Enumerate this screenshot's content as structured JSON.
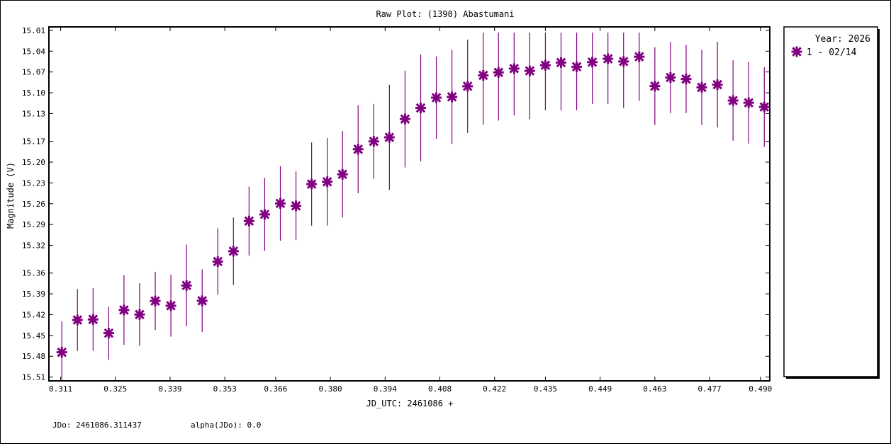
{
  "chart_data": {
    "type": "scatter",
    "title": "Raw Plot: (1390) Abastumani",
    "xlabel": "JD_UTC: 2461086 +",
    "ylabel": "Magnitude (V)",
    "x_ticks": [
      "0.311",
      "0.325",
      "0.339",
      "0.353",
      "0.366",
      "0.380",
      "0.394",
      "0.408",
      "0.422",
      "0.435",
      "0.449",
      "0.463",
      "0.477",
      "0.490"
    ],
    "y_ticks": [
      "15.01",
      "15.04",
      "15.07",
      "15.10",
      "15.13",
      "15.17",
      "15.20",
      "15.23",
      "15.26",
      "15.29",
      "15.32",
      "15.36",
      "15.39",
      "15.42",
      "15.45",
      "15.48",
      "15.51"
    ],
    "xlim": [
      0.308,
      0.4924
    ],
    "ylim": [
      15.005,
      15.5155
    ],
    "y_inverted": true,
    "legend": {
      "title": "Year: 2026",
      "entries": [
        "1 - 02/14"
      ],
      "placement": "right"
    },
    "series": [
      {
        "name": "1 - 02/14",
        "color": "#800080",
        "marker": "star",
        "x": [
          0.3113,
          0.3153,
          0.3193,
          0.3233,
          0.3272,
          0.3312,
          0.3352,
          0.3392,
          0.3432,
          0.3472,
          0.3512,
          0.3552,
          0.3592,
          0.3632,
          0.3672,
          0.3712,
          0.3752,
          0.3792,
          0.3831,
          0.3871,
          0.3911,
          0.3951,
          0.3991,
          0.4031,
          0.4071,
          0.4111,
          0.4151,
          0.4191,
          0.423,
          0.427,
          0.431,
          0.435,
          0.439,
          0.443,
          0.447,
          0.451,
          0.455,
          0.459,
          0.463,
          0.467,
          0.471,
          0.475,
          0.479,
          0.483,
          0.487,
          0.491
        ],
        "y": [
          15.4743,
          15.4277,
          15.4269,
          15.4467,
          15.4133,
          15.4198,
          15.4003,
          15.4071,
          15.3779,
          15.4,
          15.3434,
          15.3285,
          15.285,
          15.2754,
          15.2596,
          15.2631,
          15.2317,
          15.2284,
          15.2176,
          15.1814,
          15.1701,
          15.1643,
          15.1379,
          15.1219,
          15.1071,
          15.1059,
          15.0906,
          15.0749,
          15.0706,
          15.0651,
          15.0684,
          15.0603,
          15.0564,
          15.0625,
          15.0558,
          15.051,
          15.0549,
          15.048,
          15.0904,
          15.078,
          15.0802,
          15.0922,
          15.0883,
          15.1112,
          15.1144,
          15.1205
        ],
        "err": [
          0.0447,
          0.0447,
          0.0451,
          0.0382,
          0.0502,
          0.0451,
          0.042,
          0.0447,
          0.0588,
          0.0453,
          0.048,
          0.0486,
          0.0498,
          0.0527,
          0.0537,
          0.0496,
          0.06,
          0.0631,
          0.0623,
          0.0635,
          0.0539,
          0.0757,
          0.0699,
          0.077,
          0.0594,
          0.068,
          0.0674,
          0.0709,
          0.0696,
          0.0676,
          0.0699,
          0.0647,
          0.069,
          0.0625,
          0.0604,
          0.0651,
          0.0672,
          0.0637,
          0.0561,
          0.0514,
          0.049,
          0.0541,
          0.0617,
          0.058,
          0.0589,
          0.0576
        ]
      }
    ]
  },
  "footer": {
    "jdo": "JDo: 2461086.311437",
    "alpha": "alpha(JDo): 0.0"
  }
}
